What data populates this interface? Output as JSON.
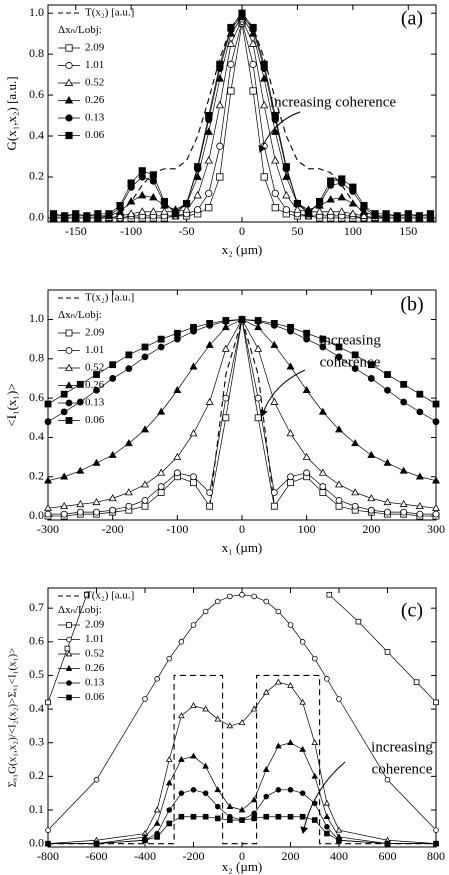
{
  "chart_data": [
    {
      "type": "line",
      "panel_label": "(a)",
      "x_label": "x₂ (µm)",
      "y_label": "G(x₁,x₂) [a.u.]",
      "legend_title": "Δxₙ/Lobj:",
      "annotation": [
        "increasing coherence"
      ],
      "xlim": [
        -175,
        175
      ],
      "xticks": [
        -150,
        -100,
        -50,
        0,
        50,
        100,
        150
      ],
      "ylim": [
        -0.02,
        1.04
      ],
      "yticks": [
        {
          "value": 0,
          "label": "0.0"
        },
        0.2,
        0.4,
        0.6,
        0.8,
        {
          "value": 1,
          "label": "1.0"
        }
      ],
      "x": [
        -170,
        -160,
        -150,
        -140,
        -130,
        -120,
        -110,
        -100,
        -90,
        -80,
        -70,
        -60,
        -50,
        -40,
        -30,
        -20,
        -10,
        0,
        10,
        20,
        30,
        40,
        50,
        60,
        70,
        80,
        90,
        100,
        110,
        120,
        130,
        140,
        150,
        160,
        170
      ],
      "series": [
        {
          "name": "T(x₂) [a.u.]",
          "color": "#000000",
          "dash": true,
          "marker": "none",
          "filled": false,
          "values": [
            null,
            null,
            null,
            null,
            null,
            null,
            0.02,
            0.08,
            0.16,
            0.22,
            0.24,
            0.24,
            0.28,
            0.4,
            0.58,
            0.78,
            0.93,
            1.0,
            0.93,
            0.78,
            0.58,
            0.4,
            0.28,
            0.24,
            0.24,
            0.22,
            0.16,
            0.08,
            0.02,
            null,
            null,
            null,
            null,
            null,
            null
          ]
        },
        {
          "name": "2.09",
          "color": "#000000",
          "marker": "square",
          "filled": false,
          "values": [
            0,
            0,
            0,
            0,
            0,
            0,
            0,
            0,
            0,
            0,
            0,
            0.01,
            0.01,
            0.02,
            0.05,
            0.2,
            0.62,
            0.95,
            0.62,
            0.2,
            0.05,
            0.02,
            0.01,
            0.01,
            0,
            0,
            0,
            0,
            0,
            0,
            0,
            0,
            0,
            0,
            0
          ]
        },
        {
          "name": "1.01",
          "color": "#000000",
          "marker": "circle",
          "filled": false,
          "values": [
            0,
            0,
            0,
            0,
            0,
            0,
            0,
            0.01,
            0.01,
            0.01,
            0.01,
            0.01,
            0.02,
            0.04,
            0.12,
            0.35,
            0.75,
            0.96,
            0.75,
            0.35,
            0.12,
            0.04,
            0.02,
            0.01,
            0.01,
            0.01,
            0.01,
            0.01,
            0,
            0,
            0,
            0,
            0,
            0,
            0
          ]
        },
        {
          "name": "0.52",
          "color": "#000000",
          "marker": "triangle",
          "filled": false,
          "values": [
            0,
            0,
            0,
            0,
            0,
            0,
            0.01,
            0.02,
            0.03,
            0.03,
            0.03,
            0.03,
            0.04,
            0.11,
            0.28,
            0.55,
            0.85,
            0.97,
            0.85,
            0.55,
            0.28,
            0.11,
            0.04,
            0.03,
            0.03,
            0.03,
            0.03,
            0.02,
            0.01,
            0,
            0,
            0,
            0,
            0,
            0
          ]
        },
        {
          "name": "0.26",
          "color": "#000000",
          "marker": "triangle",
          "filled": true,
          "values": [
            0,
            0,
            0,
            0,
            0,
            0.01,
            0.03,
            0.08,
            0.11,
            0.1,
            0.06,
            0.04,
            0.07,
            0.2,
            0.42,
            0.68,
            0.9,
            0.98,
            0.9,
            0.68,
            0.42,
            0.2,
            0.07,
            0.04,
            0.06,
            0.09,
            0.1,
            0.07,
            0.03,
            0.01,
            0,
            0,
            0,
            0,
            0
          ]
        },
        {
          "name": "0.13",
          "color": "#000000",
          "marker": "circle",
          "filled": true,
          "values": [
            0.01,
            0.01,
            0.01,
            0.01,
            0.01,
            0.01,
            0.05,
            0.15,
            0.2,
            0.18,
            0.07,
            0.03,
            0.07,
            0.24,
            0.48,
            0.73,
            0.92,
            0.99,
            0.92,
            0.73,
            0.48,
            0.24,
            0.07,
            0.03,
            0.07,
            0.16,
            0.17,
            0.13,
            0.05,
            0.01,
            0.01,
            0.01,
            0.01,
            0.01,
            0.01
          ]
        },
        {
          "name": "0.06",
          "color": "#000000",
          "marker": "square",
          "filled": true,
          "values": [
            0.02,
            0.01,
            0.02,
            0.01,
            0.02,
            0.02,
            0.06,
            0.17,
            0.23,
            0.21,
            0.08,
            0.02,
            0.07,
            0.25,
            0.5,
            0.75,
            0.93,
            1.0,
            0.93,
            0.75,
            0.5,
            0.25,
            0.07,
            0.02,
            0.08,
            0.18,
            0.19,
            0.15,
            0.06,
            0.02,
            0.02,
            0.01,
            0.02,
            0.01,
            0.02
          ]
        }
      ]
    },
    {
      "type": "line",
      "panel_label": "(b)",
      "x_label": "x₁ (µm)",
      "y_label": "<I₁(x₁)>",
      "legend_title": "Δxₙ/Lobj:",
      "annotation": [
        "increasing",
        "coherence"
      ],
      "xlim": [
        -300,
        300
      ],
      "xticks": [
        -300,
        -200,
        -100,
        0,
        100,
        200,
        300
      ],
      "ylim": [
        -0.02,
        1.15
      ],
      "yticks": [
        {
          "value": 0,
          "label": "0.0"
        },
        0.2,
        0.4,
        0.6,
        0.8,
        {
          "value": 1,
          "label": "1.0"
        }
      ],
      "x": [
        -300,
        -275,
        -250,
        -225,
        -200,
        -175,
        -150,
        -125,
        -100,
        -75,
        -50,
        -25,
        0,
        25,
        50,
        75,
        100,
        125,
        150,
        175,
        200,
        225,
        250,
        275,
        300
      ],
      "series": [
        {
          "name": "T(x₂) [a.u.]",
          "color": "#000000",
          "dash": true,
          "marker": "none",
          "filled": false,
          "values": [
            null,
            null,
            null,
            null,
            null,
            null,
            null,
            null,
            null,
            null,
            0.05,
            0.72,
            1.0,
            0.72,
            0.05,
            null,
            null,
            null,
            null,
            null,
            null,
            null,
            null,
            null,
            null
          ]
        },
        {
          "name": "2.09",
          "color": "#000000",
          "marker": "square",
          "filled": false,
          "values": [
            0,
            0,
            0.01,
            0.01,
            0.02,
            0.03,
            0.05,
            0.12,
            0.2,
            0.17,
            0.05,
            0.5,
            1.0,
            0.5,
            0.05,
            0.17,
            0.2,
            0.12,
            0.05,
            0.03,
            0.02,
            0.01,
            0.01,
            0,
            0
          ]
        },
        {
          "name": "1.01",
          "color": "#000000",
          "marker": "circle",
          "filled": false,
          "values": [
            0.01,
            0.01,
            0.02,
            0.02,
            0.03,
            0.05,
            0.08,
            0.15,
            0.22,
            0.2,
            0.12,
            0.6,
            1.0,
            0.6,
            0.12,
            0.2,
            0.22,
            0.15,
            0.08,
            0.05,
            0.03,
            0.02,
            0.02,
            0.01,
            0.01
          ]
        },
        {
          "name": "0.52",
          "color": "#000000",
          "marker": "triangle",
          "filled": false,
          "values": [
            0.04,
            0.05,
            0.06,
            0.07,
            0.09,
            0.12,
            0.16,
            0.22,
            0.3,
            0.42,
            0.58,
            0.85,
            1.0,
            0.85,
            0.58,
            0.42,
            0.3,
            0.22,
            0.16,
            0.12,
            0.09,
            0.07,
            0.06,
            0.05,
            0.04
          ]
        },
        {
          "name": "0.26",
          "color": "#000000",
          "marker": "triangle",
          "filled": true,
          "values": [
            0.18,
            0.2,
            0.23,
            0.27,
            0.31,
            0.37,
            0.44,
            0.53,
            0.64,
            0.76,
            0.87,
            0.96,
            1.0,
            0.96,
            0.87,
            0.76,
            0.64,
            0.53,
            0.44,
            0.37,
            0.31,
            0.27,
            0.23,
            0.2,
            0.18
          ]
        },
        {
          "name": "0.13",
          "color": "#000000",
          "marker": "circle",
          "filled": true,
          "values": [
            0.48,
            0.53,
            0.58,
            0.64,
            0.7,
            0.75,
            0.81,
            0.86,
            0.9,
            0.94,
            0.97,
            0.99,
            1.0,
            0.99,
            0.97,
            0.94,
            0.9,
            0.86,
            0.81,
            0.75,
            0.7,
            0.64,
            0.58,
            0.53,
            0.48
          ]
        },
        {
          "name": "0.06",
          "color": "#000000",
          "marker": "square",
          "filled": true,
          "values": [
            0.57,
            0.62,
            0.67,
            0.72,
            0.77,
            0.82,
            0.86,
            0.9,
            0.93,
            0.96,
            0.98,
            0.995,
            1.0,
            0.995,
            0.98,
            0.96,
            0.93,
            0.9,
            0.86,
            0.82,
            0.77,
            0.72,
            0.67,
            0.62,
            0.57
          ]
        }
      ]
    },
    {
      "type": "line",
      "panel_label": "(c)",
      "x_label": "x₂ (µm)",
      "y_label": "Σₓ₁G(x₁,x₂)/<I₂(x₂)>Σₓ₁<I₁(x₁)>",
      "legend_title": "Δxₙ/Lobj:",
      "annotation": [
        "increasing",
        "coherence"
      ],
      "xlim": [
        -800,
        800
      ],
      "xticks": [
        -800,
        -600,
        -400,
        -200,
        0,
        200,
        400,
        600,
        800
      ],
      "ylim": [
        -0.01,
        0.76
      ],
      "yticks": [
        {
          "value": 0,
          "label": "0.0"
        },
        0.1,
        0.2,
        0.3,
        0.4,
        0.5,
        0.6,
        0.7
      ],
      "x": [
        -800,
        -600,
        -400,
        -350,
        -300,
        -250,
        -200,
        -150,
        -100,
        -50,
        0,
        50,
        100,
        150,
        200,
        250,
        300,
        350,
        400,
        600,
        800
      ],
      "series": [
        {
          "name": "T(x₂) [a.u.]",
          "color": "#000000",
          "dash": true,
          "marker": "none",
          "filled": false,
          "x": [
            -800,
            -280,
            -280,
            -80,
            -80,
            60,
            60,
            320,
            320,
            800
          ],
          "values": [
            0,
            0,
            0.5,
            0.5,
            0,
            0,
            0.5,
            0.5,
            0,
            0
          ]
        },
        {
          "name": "2.09",
          "color": "#000000",
          "marker": "square",
          "filled": false,
          "x": [
            -800,
            -720,
            -640,
            0,
            360,
            480,
            600,
            720,
            800
          ],
          "values": [
            0.42,
            0.58,
            0.74,
            null,
            0.74,
            0.66,
            0.57,
            0.48,
            0.42
          ]
        },
        {
          "name": "1.01",
          "color": "#000000",
          "marker": "circle",
          "filled": false,
          "values": [
            0.04,
            0.19,
            0.43,
            0.49,
            0.55,
            0.6,
            0.65,
            0.69,
            0.72,
            0.735,
            0.74,
            0.735,
            0.72,
            0.69,
            0.65,
            0.6,
            0.55,
            0.49,
            0.43,
            0.19,
            0.04
          ]
        },
        {
          "name": "0.52",
          "color": "#000000",
          "marker": "triangle",
          "filled": false,
          "values": [
            0,
            0.01,
            0.03,
            0.1,
            0.25,
            0.38,
            0.41,
            0.4,
            0.37,
            0.35,
            0.36,
            0.4,
            0.45,
            0.48,
            0.47,
            0.42,
            0.3,
            0.12,
            0.04,
            0.01,
            0
          ]
        },
        {
          "name": "0.26",
          "color": "#000000",
          "marker": "triangle",
          "filled": true,
          "values": [
            0,
            0,
            0.02,
            0.06,
            0.18,
            0.25,
            0.26,
            0.23,
            0.16,
            0.11,
            0.1,
            0.13,
            0.22,
            0.29,
            0.3,
            0.28,
            0.2,
            0.08,
            0.02,
            0,
            0
          ]
        },
        {
          "name": "0.13",
          "color": "#000000",
          "marker": "circle",
          "filled": true,
          "values": [
            0,
            0,
            0.01,
            0.03,
            0.1,
            0.15,
            0.16,
            0.15,
            0.11,
            0.08,
            0.07,
            0.09,
            0.14,
            0.16,
            0.16,
            0.15,
            0.12,
            0.05,
            0.01,
            0,
            0
          ]
        },
        {
          "name": "0.06",
          "color": "#000000",
          "marker": "square",
          "filled": true,
          "values": [
            0,
            0,
            0.01,
            0.02,
            0.06,
            0.08,
            0.08,
            0.08,
            0.075,
            0.07,
            0.07,
            0.075,
            0.08,
            0.08,
            0.08,
            0.08,
            0.07,
            0.03,
            0.01,
            0,
            0
          ]
        }
      ]
    }
  ]
}
